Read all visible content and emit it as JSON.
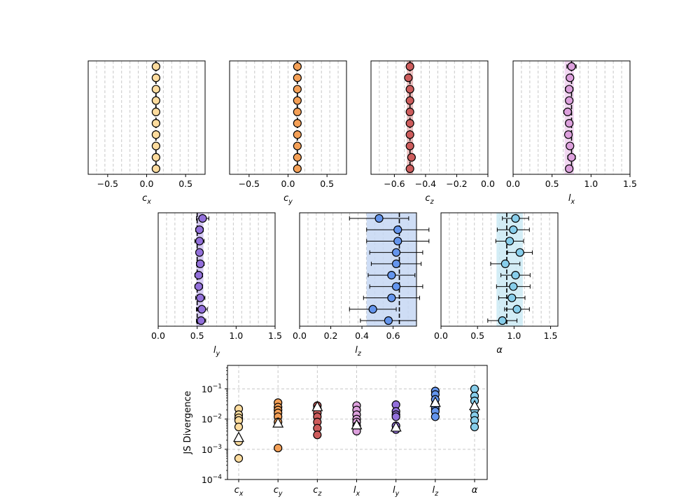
{
  "chart_data": [
    {
      "type": "scatter",
      "title": "",
      "xlabel": "c",
      "xlabel_sub": "x",
      "xlim": [
        -0.75,
        0.75
      ],
      "xticks": [
        -0.5,
        0.0,
        0.5
      ],
      "xtick_labels": [
        "−0.5",
        "0.0",
        "0.5"
      ],
      "grid": "vertical dashed",
      "color": "#fddc9e",
      "truth": 0.12,
      "band": null,
      "points": [
        {
          "value": 0.12,
          "err": 0
        },
        {
          "value": 0.12,
          "err": 0
        },
        {
          "value": 0.12,
          "err": 0
        },
        {
          "value": 0.12,
          "err": 0
        },
        {
          "value": 0.12,
          "err": 0
        },
        {
          "value": 0.12,
          "err": 0
        },
        {
          "value": 0.12,
          "err": 0
        },
        {
          "value": 0.12,
          "err": 0
        },
        {
          "value": 0.12,
          "err": 0
        },
        {
          "value": 0.12,
          "err": 0
        }
      ]
    },
    {
      "type": "scatter",
      "title": "",
      "xlabel": "c",
      "xlabel_sub": "y",
      "xlim": [
        -0.75,
        0.75
      ],
      "xticks": [
        -0.5,
        0.0,
        0.5
      ],
      "xtick_labels": [
        "−0.5",
        "0.0",
        "0.5"
      ],
      "grid": "vertical dashed",
      "color": "#f4a057",
      "truth": 0.12,
      "band": null,
      "points": [
        {
          "value": 0.12,
          "err": 0
        },
        {
          "value": 0.12,
          "err": 0
        },
        {
          "value": 0.12,
          "err": 0
        },
        {
          "value": 0.12,
          "err": 0
        },
        {
          "value": 0.12,
          "err": 0
        },
        {
          "value": 0.12,
          "err": 0
        },
        {
          "value": 0.12,
          "err": 0
        },
        {
          "value": 0.12,
          "err": 0
        },
        {
          "value": 0.12,
          "err": 0
        },
        {
          "value": 0.12,
          "err": 0
        }
      ]
    },
    {
      "type": "scatter",
      "title": "",
      "xlabel": "c",
      "xlabel_sub": "z",
      "xlim": [
        -0.75,
        0.0
      ],
      "xticks": [
        -0.6,
        -0.4,
        -0.2,
        0.0
      ],
      "xtick_labels": [
        "−0.6",
        "−0.4",
        "−0.2",
        "0.0"
      ],
      "grid": "vertical dashed",
      "color": "#cd5c5c",
      "truth": -0.5,
      "band": [
        -0.52,
        -0.48
      ],
      "band_color": "#e8b6b6",
      "points": [
        {
          "value": -0.5,
          "err": 0
        },
        {
          "value": -0.51,
          "err": 0
        },
        {
          "value": -0.5,
          "err": 0
        },
        {
          "value": -0.5,
          "err": 0
        },
        {
          "value": -0.5,
          "err": 0
        },
        {
          "value": -0.5,
          "err": 0
        },
        {
          "value": -0.5,
          "err": 0
        },
        {
          "value": -0.5,
          "err": 0
        },
        {
          "value": -0.49,
          "err": 0
        },
        {
          "value": -0.5,
          "err": 0
        }
      ]
    },
    {
      "type": "scatter",
      "title": "",
      "xlabel": "l",
      "xlabel_sub": "x",
      "xlim": [
        0.0,
        1.5
      ],
      "xticks": [
        0.0,
        0.5,
        1.0,
        1.5
      ],
      "xtick_labels": [
        "0.0",
        "0.5",
        "1.0",
        "1.5"
      ],
      "grid": "vertical dashed",
      "color": "#dda0dd",
      "truth": 0.75,
      "band": [
        0.66,
        0.78
      ],
      "band_color": "#eed0ee",
      "points": [
        {
          "value": 0.75,
          "err": 0.06
        },
        {
          "value": 0.73,
          "err": 0.04
        },
        {
          "value": 0.72,
          "err": 0.05
        },
        {
          "value": 0.72,
          "err": 0.04
        },
        {
          "value": 0.7,
          "err": 0.05
        },
        {
          "value": 0.72,
          "err": 0.04
        },
        {
          "value": 0.71,
          "err": 0.04
        },
        {
          "value": 0.73,
          "err": 0.04
        },
        {
          "value": 0.75,
          "err": 0.05
        },
        {
          "value": 0.72,
          "err": 0.04
        }
      ]
    },
    {
      "type": "scatter",
      "title": "",
      "xlabel": "l",
      "xlabel_sub": "y",
      "xlim": [
        0.0,
        1.5
      ],
      "xticks": [
        0.0,
        0.5,
        1.0,
        1.5
      ],
      "xtick_labels": [
        "0.0",
        "0.5",
        "1.0",
        "1.5"
      ],
      "grid": "vertical dashed",
      "color": "#9370db",
      "truth": 0.5,
      "band": [
        0.49,
        0.58
      ],
      "band_color": "#cdbff0",
      "points": [
        {
          "value": 0.57,
          "err": 0.08
        },
        {
          "value": 0.53,
          "err": 0.05
        },
        {
          "value": 0.53,
          "err": 0.06
        },
        {
          "value": 0.53,
          "err": 0.04
        },
        {
          "value": 0.54,
          "err": 0.05
        },
        {
          "value": 0.52,
          "err": 0.05
        },
        {
          "value": 0.52,
          "err": 0.05
        },
        {
          "value": 0.54,
          "err": 0.06
        },
        {
          "value": 0.56,
          "err": 0.07
        },
        {
          "value": 0.55,
          "err": 0.06
        }
      ]
    },
    {
      "type": "scatter",
      "title": "",
      "xlabel": "l",
      "xlabel_sub": "z",
      "xlim": [
        0.0,
        0.75
      ],
      "xticks": [
        0.0,
        0.2,
        0.4,
        0.6
      ],
      "xtick_labels": [
        "0.0",
        "0.2",
        "0.4",
        "0.6"
      ],
      "grid": "vertical dashed",
      "color": "#6495ed",
      "truth": 0.64,
      "band": [
        0.43,
        0.75
      ],
      "band_color": "#c6d7f3",
      "points": [
        {
          "value": 0.51,
          "err": 0.19
        },
        {
          "value": 0.63,
          "err": 0.2
        },
        {
          "value": 0.63,
          "err": 0.2
        },
        {
          "value": 0.62,
          "err": 0.17
        },
        {
          "value": 0.62,
          "err": 0.16
        },
        {
          "value": 0.59,
          "err": 0.15
        },
        {
          "value": 0.62,
          "err": 0.17
        },
        {
          "value": 0.59,
          "err": 0.18
        },
        {
          "value": 0.47,
          "err": 0.15
        },
        {
          "value": 0.57,
          "err": 0.18
        }
      ]
    },
    {
      "type": "scatter",
      "title": "",
      "xlabel": "α",
      "xlabel_sub": "",
      "xlim": [
        0.0,
        1.6
      ],
      "xticks": [
        0.0,
        0.5,
        1.0,
        1.5
      ],
      "xtick_labels": [
        "0.0",
        "0.5",
        "1.0",
        "1.5"
      ],
      "grid": "vertical dashed",
      "color": "#87ceeb",
      "truth": 0.9,
      "band": [
        0.76,
        1.12
      ],
      "band_color": "#cbeaf5",
      "points": [
        {
          "value": 1.02,
          "err": 0.18
        },
        {
          "value": 0.99,
          "err": 0.22
        },
        {
          "value": 0.94,
          "err": 0.19
        },
        {
          "value": 1.08,
          "err": 0.17
        },
        {
          "value": 0.88,
          "err": 0.2
        },
        {
          "value": 1.02,
          "err": 0.2
        },
        {
          "value": 0.99,
          "err": 0.23
        },
        {
          "value": 0.97,
          "err": 0.18
        },
        {
          "value": 1.04,
          "err": 0.17
        },
        {
          "value": 0.84,
          "err": 0.2
        }
      ]
    },
    {
      "type": "scatter",
      "title": "",
      "ylabel": "JS Divergence",
      "yscale": "log",
      "ylim": [
        0.0001,
        0.6
      ],
      "ytick_exponents": [
        -4,
        -3,
        -2,
        -1
      ],
      "ytick_base": "10",
      "grid": "both dashed",
      "categories": [
        {
          "main": "c",
          "sub": "x",
          "color": "#fddc9e",
          "values": [
            0.022,
            0.014,
            0.011,
            0.009,
            0.0055,
            0.0018,
            0.0005
          ],
          "mean": 0.0025
        },
        {
          "main": "c",
          "sub": "y",
          "color": "#f4a057",
          "values": [
            0.035,
            0.025,
            0.02,
            0.016,
            0.012,
            0.008,
            0.0011
          ],
          "mean": 0.0075
        },
        {
          "main": "c",
          "sub": "z",
          "color": "#cd5c5c",
          "values": [
            0.028,
            0.022,
            0.016,
            0.012,
            0.008,
            0.005,
            0.003
          ],
          "mean": 0.026
        },
        {
          "main": "l",
          "sub": "x",
          "color": "#dda0dd",
          "values": [
            0.028,
            0.02,
            0.014,
            0.01,
            0.008,
            0.006,
            0.004
          ],
          "mean": 0.0065
        },
        {
          "main": "l",
          "sub": "y",
          "color": "#9370db",
          "values": [
            0.03,
            0.018,
            0.014,
            0.012,
            0.006,
            0.0045
          ],
          "mean": 0.0055
        },
        {
          "main": "l",
          "sub": "z",
          "color": "#6495ed",
          "values": [
            0.085,
            0.065,
            0.045,
            0.03,
            0.022,
            0.018,
            0.012
          ],
          "mean": 0.036
        },
        {
          "main": "α",
          "sub": "",
          "color": "#87ceeb",
          "values": [
            0.1,
            0.058,
            0.04,
            0.02,
            0.013,
            0.009,
            0.0055
          ],
          "mean": 0.028
        }
      ]
    }
  ]
}
